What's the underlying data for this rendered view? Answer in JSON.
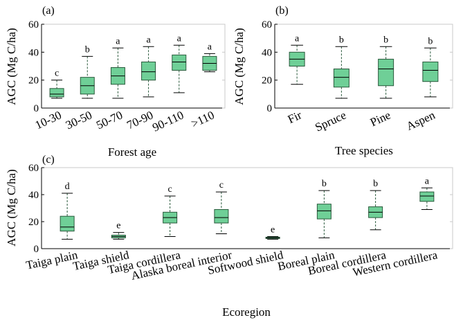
{
  "colors": {
    "box_fill": "#6fcf97",
    "box_stroke": "#2a5a3c",
    "median": "#000000",
    "axis": "#000000"
  },
  "chart_data": [
    {
      "id": "a",
      "type": "boxplot",
      "panel_label": "(a)",
      "xlabel": "Forest age",
      "ylabel": "AGC (Mg C/ha)",
      "ylim": [
        0,
        60
      ],
      "yticks": [
        0,
        20,
        40,
        60
      ],
      "categories": [
        "10-30",
        "30-50",
        "50-70",
        "70-90",
        "90-110",
        ">110"
      ],
      "boxes": [
        {
          "min": 7,
          "q1": 8,
          "median": 10,
          "q3": 14,
          "max": 20,
          "letter": "c"
        },
        {
          "min": 7,
          "q1": 10,
          "median": 16,
          "q3": 22,
          "max": 37,
          "letter": "b"
        },
        {
          "min": 7,
          "q1": 17,
          "median": 23,
          "q3": 29,
          "max": 43,
          "letter": "a"
        },
        {
          "min": 8,
          "q1": 20,
          "median": 26,
          "q3": 33,
          "max": 44,
          "letter": "a"
        },
        {
          "min": 11,
          "q1": 27,
          "median": 33,
          "q3": 38,
          "max": 45,
          "letter": "a"
        },
        {
          "min": 26,
          "q1": 27,
          "median": 32,
          "q3": 37,
          "max": 39,
          "letter": "a"
        }
      ]
    },
    {
      "id": "b",
      "type": "boxplot",
      "panel_label": "(b)",
      "xlabel": "Tree species",
      "ylabel": "AGC (Mg C/ha)",
      "ylim": [
        0,
        60
      ],
      "yticks": [
        0,
        20,
        40,
        60
      ],
      "categories": [
        "Fir",
        "Spruce",
        "Pine",
        "Aspen"
      ],
      "boxes": [
        {
          "min": 17,
          "q1": 30,
          "median": 35,
          "q3": 40,
          "max": 45,
          "letter": "a"
        },
        {
          "min": 7,
          "q1": 15,
          "median": 22,
          "q3": 28,
          "max": 44,
          "letter": "b"
        },
        {
          "min": 7,
          "q1": 16,
          "median": 28,
          "q3": 35,
          "max": 44,
          "letter": "b"
        },
        {
          "min": 8,
          "q1": 19,
          "median": 27,
          "q3": 33,
          "max": 43,
          "letter": "b"
        }
      ]
    },
    {
      "id": "c",
      "type": "boxplot",
      "panel_label": "(c)",
      "xlabel": "Ecoregion",
      "ylabel": "AGC (Mg C/ha)",
      "ylim": [
        0,
        60
      ],
      "yticks": [
        0,
        20,
        40,
        60
      ],
      "categories": [
        "Taiga plain",
        "Taiga shield",
        "Taiga cordillera",
        "Alaska boreal interior",
        "Softwood shield",
        "Boreal plain",
        "Boreal cordillera",
        "Western cordillera"
      ],
      "boxes": [
        {
          "min": 7,
          "q1": 13,
          "median": 16,
          "q3": 24,
          "max": 41,
          "letter": "d"
        },
        {
          "min": 7,
          "q1": 8,
          "median": 9,
          "q3": 10,
          "max": 12,
          "letter": "e"
        },
        {
          "min": 9,
          "q1": 19,
          "median": 23,
          "q3": 27,
          "max": 39,
          "letter": "c"
        },
        {
          "min": 11,
          "q1": 19,
          "median": 23,
          "q3": 29,
          "max": 42,
          "letter": "c"
        },
        {
          "min": 7,
          "q1": 7.5,
          "median": 8,
          "q3": 8.5,
          "max": 9,
          "letter": "e"
        },
        {
          "min": 8,
          "q1": 22,
          "median": 28,
          "q3": 33,
          "max": 43,
          "letter": "b"
        },
        {
          "min": 14,
          "q1": 23,
          "median": 27,
          "q3": 31,
          "max": 43,
          "letter": "b"
        },
        {
          "min": 29,
          "q1": 35,
          "median": 39,
          "q3": 42,
          "max": 45,
          "letter": "a"
        }
      ]
    }
  ]
}
